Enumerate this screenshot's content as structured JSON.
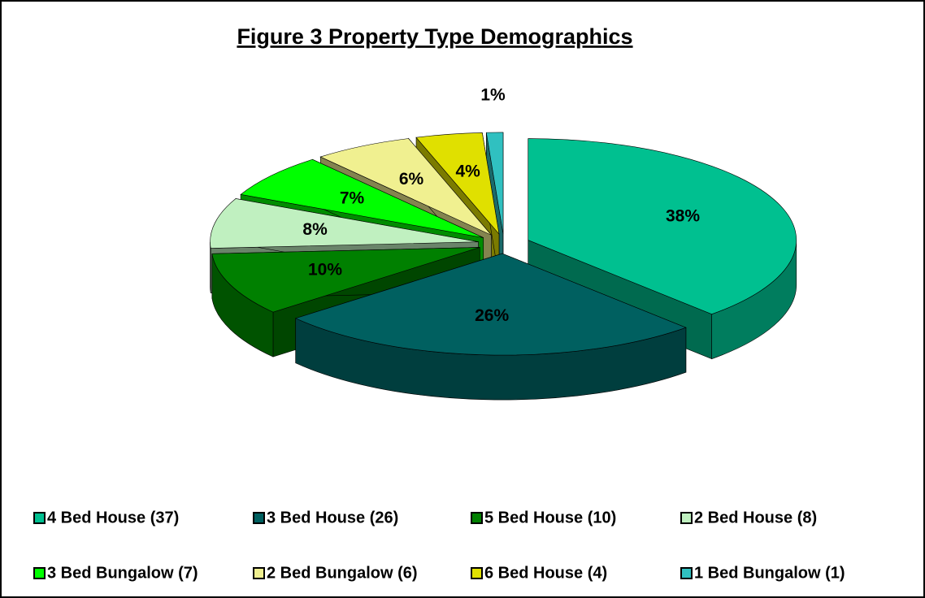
{
  "chart_data": {
    "type": "pie3d",
    "title": "Figure 3 Property Type Demographics",
    "categories": [
      "4 Bed House (37)",
      "3 Bed House (26)",
      "5 Bed House (10)",
      "2 Bed House (8)",
      "3 Bed Bungalow (7)",
      "2 Bed Bungalow (6)",
      "6 Bed House (4)",
      "1 Bed Bungalow (1)"
    ],
    "values": [
      38,
      26,
      10,
      8,
      7,
      6,
      4,
      1
    ],
    "value_labels": [
      "38%",
      "26%",
      "10%",
      "8%",
      "7%",
      "6%",
      "4%",
      "1%"
    ],
    "colors": [
      "#00c090",
      "#006060",
      "#008000",
      "#c0f0c0",
      "#00ff00",
      "#f0f090",
      "#e0e000",
      "#30c0c0"
    ],
    "legend": "bottom"
  }
}
